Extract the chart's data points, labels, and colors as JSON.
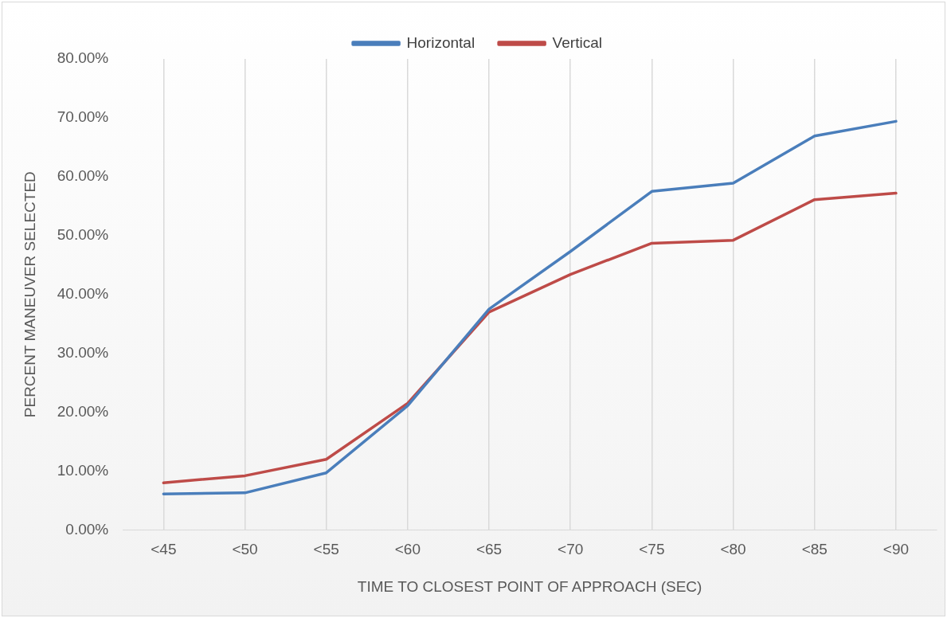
{
  "chart_data": {
    "type": "line",
    "xlabel": "TIME TO CLOSEST POINT OF APPROACH (SEC)",
    "ylabel": "PERCENT MANEUVER SELECTED",
    "categories": [
      "<45",
      "<50",
      "<55",
      "<60",
      "<65",
      "<70",
      "<75",
      "<80",
      "<85",
      "<90"
    ],
    "series": [
      {
        "name": "Horizontal",
        "color": "#4a7ebb",
        "values": [
          6.1,
          6.3,
          9.7,
          21.1,
          37.5,
          47.3,
          57.5,
          58.9,
          66.9,
          69.4
        ]
      },
      {
        "name": "Vertical",
        "color": "#be4b48",
        "values": [
          8.0,
          9.2,
          12.0,
          21.5,
          37.0,
          43.4,
          48.7,
          49.2,
          56.1,
          57.2
        ]
      }
    ],
    "ylim": [
      0,
      80
    ],
    "yticks": [
      {
        "value": 0,
        "label": "0.00%"
      },
      {
        "value": 10,
        "label": "10.00%"
      },
      {
        "value": 20,
        "label": "20.00%"
      },
      {
        "value": 30,
        "label": "30.00%"
      },
      {
        "value": 40,
        "label": "40.00%"
      },
      {
        "value": 50,
        "label": "50.00%"
      },
      {
        "value": 60,
        "label": "60.00%"
      },
      {
        "value": 70,
        "label": "70.00%"
      },
      {
        "value": 80,
        "label": "80.00%"
      }
    ],
    "grid": "x",
    "legend": "top",
    "marker": "none",
    "line_style": "solid"
  }
}
